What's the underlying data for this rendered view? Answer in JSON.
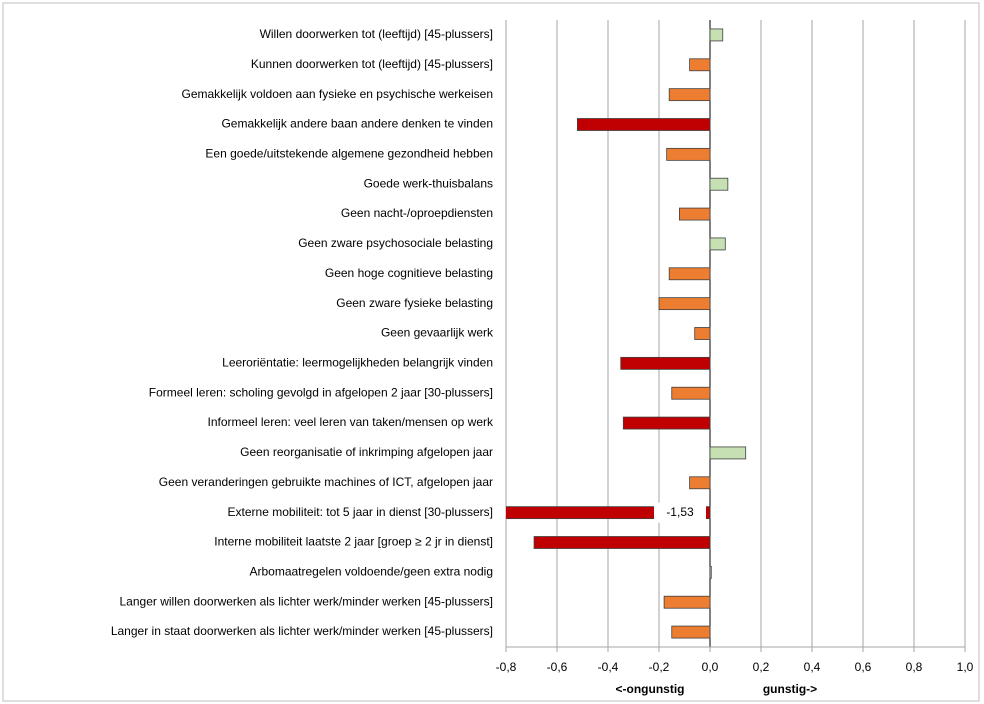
{
  "chart_data": {
    "type": "barh",
    "categories": [
      "Willen doorwerken tot (leeftijd) [45-plussers]",
      "Kunnen doorwerken tot (leeftijd) [45-plussers]",
      "Gemakkelijk voldoen aan fysieke en psychische werkeisen",
      "Gemakkelijk andere baan andere denken te vinden",
      "Een goede/uitstekende algemene gezondheid hebben",
      "Goede werk-thuisbalans",
      "Geen nacht-/oproepdiensten",
      "Geen zware psychosociale belasting",
      "Geen hoge cognitieve belasting",
      "Geen zware fysieke belasting",
      "Geen gevaarlijk werk",
      "Leeroriëntatie: leermogelijkheden belangrijk vinden",
      "Formeel leren: scholing gevolgd in afgelopen 2 jaar [30-plussers]",
      "Informeel leren: veel leren van taken/mensen op werk",
      "Geen reorganisatie of inkrimping afgelopen jaar",
      "Geen veranderingen gebruikte machines of ICT, afgelopen jaar",
      "Externe mobiliteit: tot 5 jaar in dienst [30-plussers]",
      "Interne mobiliteit laatste 2 jaar [groep ≥ 2 jr in dienst]",
      "Arbomaatregelen voldoende/geen extra nodig",
      "Langer willen doorwerken als lichter werk/minder werken [45-plussers]",
      "Langer in staat doorwerken als lichter werk/minder werken [45-plussers]"
    ],
    "values": [
      0.05,
      -0.08,
      -0.16,
      -0.52,
      -0.17,
      0.07,
      -0.12,
      0.06,
      -0.16,
      -0.2,
      -0.06,
      -0.35,
      -0.15,
      -0.34,
      0.14,
      -0.08,
      -1.53,
      -0.69,
      0.005,
      -0.18,
      -0.15
    ],
    "value_labels": [
      null,
      null,
      null,
      null,
      null,
      null,
      null,
      null,
      null,
      null,
      null,
      null,
      null,
      null,
      null,
      null,
      "-1,53",
      null,
      null,
      null,
      null
    ],
    "colors": [
      "#c6e0b4",
      "#ed7d31",
      "#ed7d31",
      "#c00000",
      "#ed7d31",
      "#c6e0b4",
      "#ed7d31",
      "#c6e0b4",
      "#ed7d31",
      "#ed7d31",
      "#ed7d31",
      "#c00000",
      "#ed7d31",
      "#c00000",
      "#c6e0b4",
      "#ed7d31",
      "#c00000",
      "#c00000",
      "#c6e0b4",
      "#ed7d31",
      "#ed7d31"
    ],
    "xlim": [
      -0.8,
      1.0
    ],
    "xticks": [
      {
        "value": -0.8,
        "label": "-0,8"
      },
      {
        "value": -0.6,
        "label": "-0,6"
      },
      {
        "value": -0.4,
        "label": "-0,4"
      },
      {
        "value": -0.2,
        "label": "-0,2"
      },
      {
        "value": 0,
        "label": "0,0"
      },
      {
        "value": 0.2,
        "label": "0,2"
      },
      {
        "value": 0.4,
        "label": "0,4"
      },
      {
        "value": 0.6,
        "label": "0,6"
      },
      {
        "value": 0.8,
        "label": "0,8"
      },
      {
        "value": 1.0,
        "label": "1,0"
      }
    ],
    "annotations": [
      "<-ongunstig",
      "gunstig->"
    ],
    "grid": true
  }
}
